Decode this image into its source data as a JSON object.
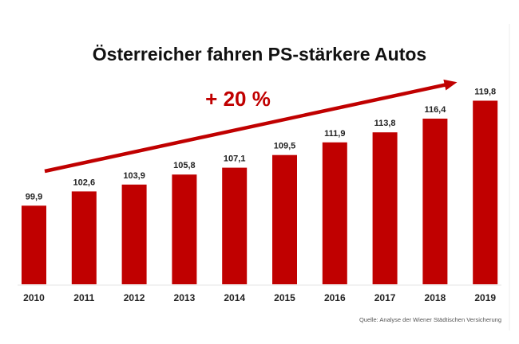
{
  "chart_data": {
    "type": "bar",
    "title": "Österreicher fahren PS-stärkere Autos",
    "xlabel": "",
    "ylabel": "",
    "categories": [
      "2010",
      "2011",
      "2012",
      "2013",
      "2014",
      "2015",
      "2016",
      "2017",
      "2018",
      "2019"
    ],
    "values": [
      99.9,
      102.6,
      103.9,
      105.8,
      107.1,
      109.5,
      111.9,
      113.8,
      116.4,
      119.8
    ],
    "value_labels": [
      "99,9",
      "102,6",
      "103,9",
      "105,8",
      "107,1",
      "109,5",
      "111,9",
      "113,8",
      "116,4",
      "119,8"
    ],
    "ylim": [
      85,
      125
    ],
    "grid": false,
    "legend": "none",
    "annotation": {
      "text": "+ 20 %",
      "type": "trend-arrow",
      "from_category": "2010",
      "to_category": "2019"
    },
    "source": "Quelle: Analyse der Wiener Städtischen Versicherung",
    "colors": {
      "bar": "#c00000",
      "arrow": "#c00000",
      "annotation_text": "#c00000",
      "text": "#222222"
    }
  }
}
